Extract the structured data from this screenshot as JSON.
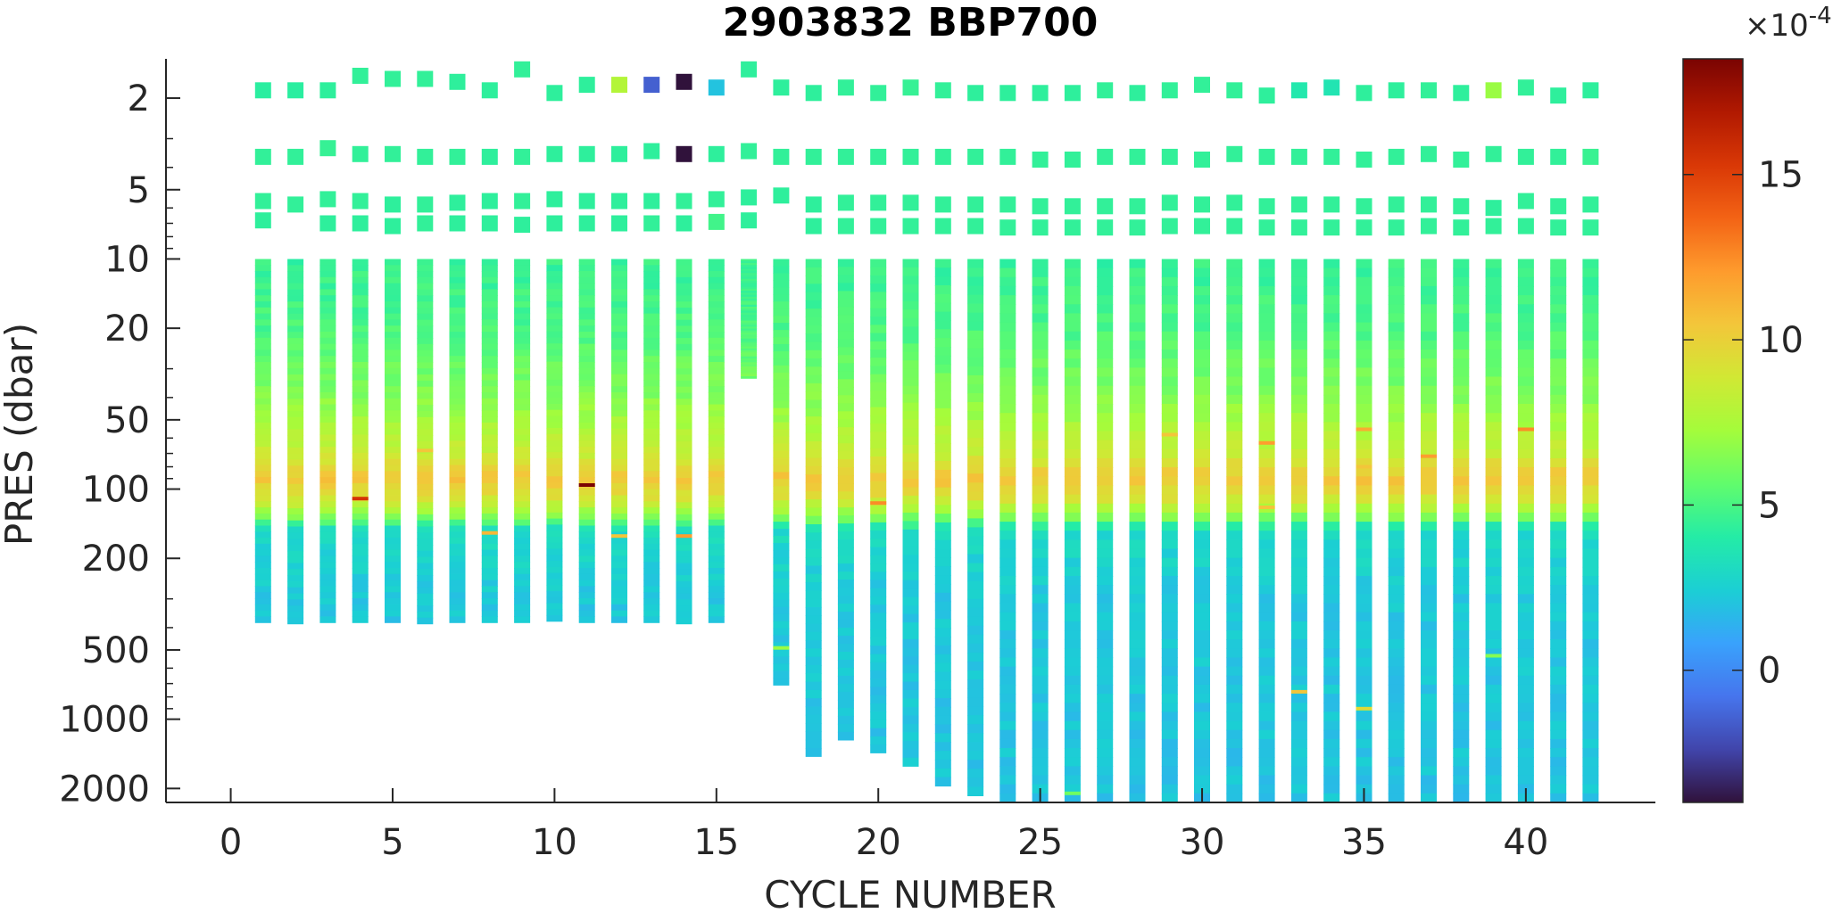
{
  "chart_data": {
    "type": "heatmap",
    "title": "2903832 BBP700",
    "xlabel": "CYCLE NUMBER",
    "ylabel": "PRES (dbar)",
    "xlim": [
      -2,
      44
    ],
    "ylim": [
      1.35,
      2300
    ],
    "yscale": "log",
    "y_reversed": true,
    "xticks": [
      0,
      5,
      10,
      15,
      20,
      25,
      30,
      35,
      40
    ],
    "yticks": [
      2,
      5,
      10,
      20,
      50,
      100,
      200,
      500,
      1000,
      2000
    ],
    "colorbar": {
      "multiplier_label": "×10",
      "multiplier_exponent": "-4",
      "range": [
        -4,
        18.5
      ],
      "ticks": [
        0,
        5,
        10,
        15
      ],
      "colormap": [
        "#30123b",
        "#4145ab",
        "#4675ed",
        "#39a2fc",
        "#1bcfd4",
        "#24eca6",
        "#61fc6c",
        "#a4fc3b",
        "#d1e834",
        "#f3c63a",
        "#fe9b2d",
        "#f36315",
        "#d93806",
        "#b11901",
        "#7a0402"
      ]
    },
    "profiles": [
      {
        "cycle": 1,
        "max_pres": 380,
        "surface": [
          [
            1.85,
            4.2
          ],
          [
            3.6,
            4.4
          ],
          [
            5.6,
            4.4
          ],
          [
            6.8,
            4.3
          ]
        ]
      },
      {
        "cycle": 2,
        "max_pres": 385,
        "surface": [
          [
            1.85,
            4.2
          ],
          [
            3.6,
            4.4
          ],
          [
            5.8,
            4.4
          ]
        ]
      },
      {
        "cycle": 3,
        "max_pres": 380,
        "surface": [
          [
            1.85,
            4.3
          ],
          [
            3.3,
            4.5
          ],
          [
            5.5,
            4.4
          ],
          [
            7.0,
            4.3
          ]
        ]
      },
      {
        "cycle": 4,
        "max_pres": 380,
        "surface": [
          [
            1.6,
            4.4
          ],
          [
            3.5,
            4.4
          ],
          [
            5.6,
            4.4
          ],
          [
            7.0,
            4.3
          ]
        ],
        "anomalies": [
          [
            110,
            15.5
          ]
        ]
      },
      {
        "cycle": 5,
        "max_pres": 380,
        "surface": [
          [
            1.65,
            4.4
          ],
          [
            3.5,
            4.4
          ],
          [
            5.8,
            4.3
          ],
          [
            7.2,
            4.3
          ]
        ]
      },
      {
        "cycle": 6,
        "max_pres": 385,
        "surface": [
          [
            1.65,
            4.4
          ],
          [
            3.6,
            4.4
          ],
          [
            5.8,
            4.4
          ],
          [
            7.0,
            4.4
          ]
        ],
        "anomalies": [
          [
            68,
            10.5
          ]
        ]
      },
      {
        "cycle": 7,
        "max_pres": 380,
        "surface": [
          [
            1.7,
            4.3
          ],
          [
            3.6,
            4.4
          ],
          [
            5.7,
            4.3
          ],
          [
            7.0,
            4.3
          ]
        ]
      },
      {
        "cycle": 8,
        "max_pres": 380,
        "surface": [
          [
            1.85,
            4.3
          ],
          [
            3.6,
            4.3
          ],
          [
            5.6,
            4.3
          ],
          [
            7.0,
            4.3
          ]
        ],
        "anomalies": [
          [
            155,
            11.0
          ]
        ]
      },
      {
        "cycle": 9,
        "max_pres": 380,
        "surface": [
          [
            1.5,
            4.4
          ],
          [
            3.6,
            4.4
          ],
          [
            5.6,
            4.4
          ],
          [
            7.1,
            4.3
          ]
        ]
      },
      {
        "cycle": 10,
        "max_pres": 375,
        "surface": [
          [
            1.9,
            4.3
          ],
          [
            3.5,
            4.3
          ],
          [
            5.5,
            4.3
          ],
          [
            7.0,
            4.3
          ]
        ]
      },
      {
        "cycle": 11,
        "max_pres": 380,
        "surface": [
          [
            1.75,
            4.3
          ],
          [
            3.5,
            4.3
          ],
          [
            5.6,
            4.3
          ],
          [
            7.0,
            4.3
          ]
        ],
        "anomalies": [
          [
            96,
            18.5
          ]
        ]
      },
      {
        "cycle": 12,
        "max_pres": 380,
        "surface": [
          [
            1.75,
            7.8
          ],
          [
            3.5,
            4.3
          ],
          [
            5.6,
            4.3
          ],
          [
            7.0,
            4.3
          ]
        ],
        "anomalies": [
          [
            160,
            10.5
          ]
        ]
      },
      {
        "cycle": 13,
        "max_pres": 380,
        "surface": [
          [
            1.75,
            -1.5
          ],
          [
            3.4,
            4.3
          ],
          [
            5.6,
            4.3
          ],
          [
            7.0,
            4.4
          ]
        ]
      },
      {
        "cycle": 14,
        "max_pres": 385,
        "surface": [
          [
            1.7,
            -4.0
          ],
          [
            3.5,
            -4.0
          ],
          [
            5.6,
            4.4
          ],
          [
            7.0,
            4.3
          ]
        ],
        "anomalies": [
          [
            160,
            12.0
          ]
        ]
      },
      {
        "cycle": 15,
        "max_pres": 380,
        "surface": [
          [
            1.8,
            2.0
          ],
          [
            3.5,
            4.3
          ],
          [
            5.5,
            4.4
          ],
          [
            6.9,
            4.8
          ]
        ]
      },
      {
        "cycle": 16,
        "max_pres": 33,
        "surface": [
          [
            1.5,
            4.3
          ],
          [
            3.4,
            4.4
          ],
          [
            5.4,
            4.3
          ],
          [
            6.8,
            4.3
          ]
        ]
      },
      {
        "cycle": 17,
        "max_pres": 710,
        "surface": [
          [
            1.8,
            4.3
          ],
          [
            3.6,
            4.4
          ],
          [
            5.3,
            4.3
          ]
        ],
        "anomalies": [
          [
            490,
            7.0
          ]
        ]
      },
      {
        "cycle": 18,
        "max_pres": 1450,
        "surface": [
          [
            1.9,
            4.3
          ],
          [
            3.6,
            4.4
          ],
          [
            5.8,
            4.3
          ],
          [
            7.2,
            4.3
          ]
        ]
      },
      {
        "cycle": 19,
        "max_pres": 1230,
        "surface": [
          [
            1.8,
            4.4
          ],
          [
            3.6,
            4.4
          ],
          [
            5.7,
            4.4
          ],
          [
            7.2,
            4.4
          ]
        ]
      },
      {
        "cycle": 20,
        "max_pres": 1400,
        "surface": [
          [
            1.9,
            4.4
          ],
          [
            3.6,
            4.4
          ],
          [
            5.7,
            4.4
          ],
          [
            7.2,
            4.4
          ]
        ],
        "anomalies": [
          [
            115,
            12.5
          ]
        ]
      },
      {
        "cycle": 21,
        "max_pres": 1600,
        "surface": [
          [
            1.8,
            4.5
          ],
          [
            3.6,
            4.4
          ],
          [
            5.7,
            4.4
          ],
          [
            7.2,
            4.4
          ]
        ]
      },
      {
        "cycle": 22,
        "max_pres": 1950,
        "surface": [
          [
            1.85,
            4.4
          ],
          [
            3.6,
            4.4
          ],
          [
            5.8,
            4.4
          ],
          [
            7.2,
            4.4
          ]
        ]
      },
      {
        "cycle": 23,
        "max_pres": 2150,
        "surface": [
          [
            1.9,
            4.3
          ],
          [
            3.6,
            4.4
          ],
          [
            5.8,
            4.4
          ],
          [
            7.2,
            4.4
          ]
        ]
      },
      {
        "cycle": 24,
        "max_pres": 2300,
        "surface": [
          [
            1.9,
            4.3
          ],
          [
            3.6,
            4.4
          ],
          [
            5.8,
            4.4
          ],
          [
            7.3,
            4.4
          ]
        ]
      },
      {
        "cycle": 25,
        "max_pres": 2300,
        "surface": [
          [
            1.9,
            4.3
          ],
          [
            3.7,
            4.4
          ],
          [
            5.9,
            4.4
          ],
          [
            7.3,
            4.4
          ]
        ]
      },
      {
        "cycle": 26,
        "max_pres": 2300,
        "surface": [
          [
            1.9,
            4.3
          ],
          [
            3.7,
            4.4
          ],
          [
            5.9,
            4.4
          ],
          [
            7.3,
            4.4
          ]
        ],
        "anomalies": [
          [
            2100,
            6.0
          ]
        ]
      },
      {
        "cycle": 27,
        "max_pres": 2300,
        "surface": [
          [
            1.85,
            4.4
          ],
          [
            3.6,
            4.4
          ],
          [
            5.9,
            4.4
          ],
          [
            7.3,
            4.4
          ]
        ]
      },
      {
        "cycle": 28,
        "max_pres": 2300,
        "surface": [
          [
            1.9,
            4.3
          ],
          [
            3.6,
            4.4
          ],
          [
            5.9,
            4.4
          ],
          [
            7.3,
            4.4
          ]
        ]
      },
      {
        "cycle": 29,
        "max_pres": 2300,
        "surface": [
          [
            1.85,
            4.4
          ],
          [
            3.6,
            4.4
          ],
          [
            5.7,
            4.4
          ],
          [
            7.2,
            4.4
          ]
        ],
        "anomalies": [
          [
            58,
            10.5
          ]
        ]
      },
      {
        "cycle": 30,
        "max_pres": 2300,
        "surface": [
          [
            1.75,
            4.4
          ],
          [
            3.7,
            4.4
          ],
          [
            5.8,
            4.4
          ],
          [
            7.2,
            4.4
          ]
        ]
      },
      {
        "cycle": 31,
        "max_pres": 2300,
        "surface": [
          [
            1.85,
            4.4
          ],
          [
            3.5,
            4.4
          ],
          [
            5.7,
            4.4
          ],
          [
            7.2,
            4.4
          ]
        ]
      },
      {
        "cycle": 32,
        "max_pres": 2300,
        "surface": [
          [
            1.95,
            4.3
          ],
          [
            3.6,
            4.4
          ],
          [
            5.9,
            4.4
          ],
          [
            7.3,
            4.4
          ]
        ],
        "anomalies": [
          [
            63,
            12.0
          ],
          [
            120,
            10.5
          ]
        ]
      },
      {
        "cycle": 33,
        "max_pres": 2300,
        "surface": [
          [
            1.85,
            3.8
          ],
          [
            3.6,
            4.4
          ],
          [
            5.8,
            4.4
          ],
          [
            7.3,
            4.4
          ]
        ],
        "anomalies": [
          [
            760,
            10.5
          ]
        ]
      },
      {
        "cycle": 34,
        "max_pres": 2300,
        "surface": [
          [
            1.8,
            3.6
          ],
          [
            3.6,
            4.4
          ],
          [
            5.8,
            4.4
          ],
          [
            7.3,
            4.4
          ]
        ]
      },
      {
        "cycle": 35,
        "max_pres": 2300,
        "surface": [
          [
            1.9,
            4.3
          ],
          [
            3.7,
            4.4
          ],
          [
            5.9,
            4.4
          ],
          [
            7.3,
            4.4
          ]
        ],
        "anomalies": [
          [
            55,
            11.5
          ],
          [
            80,
            10.5
          ],
          [
            900,
            9.5
          ]
        ]
      },
      {
        "cycle": 36,
        "max_pres": 2300,
        "surface": [
          [
            1.85,
            4.3
          ],
          [
            3.6,
            4.4
          ],
          [
            5.8,
            4.4
          ],
          [
            7.3,
            4.4
          ]
        ]
      },
      {
        "cycle": 37,
        "max_pres": 2300,
        "surface": [
          [
            1.85,
            4.4
          ],
          [
            3.5,
            4.4
          ],
          [
            5.8,
            4.4
          ],
          [
            7.2,
            4.4
          ]
        ],
        "anomalies": [
          [
            72,
            12.0
          ]
        ]
      },
      {
        "cycle": 38,
        "max_pres": 2300,
        "surface": [
          [
            1.9,
            4.3
          ],
          [
            3.7,
            4.4
          ],
          [
            5.9,
            4.4
          ],
          [
            7.3,
            4.4
          ]
        ]
      },
      {
        "cycle": 39,
        "max_pres": 2300,
        "surface": [
          [
            1.85,
            7.0
          ],
          [
            3.5,
            4.4
          ],
          [
            6.0,
            4.3
          ],
          [
            7.2,
            4.4
          ]
        ],
        "anomalies": [
          [
            530,
            6.5
          ]
        ]
      },
      {
        "cycle": 40,
        "max_pres": 2300,
        "surface": [
          [
            1.8,
            4.4
          ],
          [
            3.6,
            4.4
          ],
          [
            5.6,
            4.4
          ],
          [
            7.2,
            4.4
          ]
        ],
        "anomalies": [
          [
            55,
            12.5
          ]
        ]
      },
      {
        "cycle": 41,
        "max_pres": 2300,
        "surface": [
          [
            1.95,
            4.3
          ],
          [
            3.6,
            4.4
          ],
          [
            5.9,
            4.4
          ],
          [
            7.3,
            4.4
          ]
        ]
      },
      {
        "cycle": 42,
        "max_pres": 2300,
        "surface": [
          [
            1.85,
            4.3
          ],
          [
            3.6,
            4.6
          ],
          [
            5.8,
            4.4
          ],
          [
            7.3,
            4.4
          ]
        ]
      }
    ],
    "depth_profile_typical": [
      {
        "pres": 10,
        "bbp": 4.5
      },
      {
        "pres": 20,
        "bbp": 5.0
      },
      {
        "pres": 40,
        "bbp": 6.5
      },
      {
        "pres": 70,
        "bbp": 8.5
      },
      {
        "pres": 90,
        "bbp": 10.5
      },
      {
        "pres": 110,
        "bbp": 9.0
      },
      {
        "pres": 135,
        "bbp": 6.0
      },
      {
        "pres": 150,
        "bbp": 3.0
      },
      {
        "pres": 300,
        "bbp": 2.2
      },
      {
        "pres": 2300,
        "bbp": 2.0
      }
    ]
  }
}
